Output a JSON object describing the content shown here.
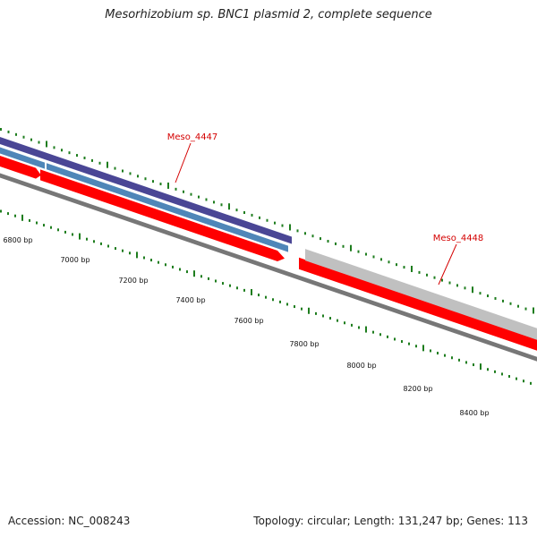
{
  "title": "Mesorhizobium sp. BNC1 plasmid 2, complete sequence",
  "footer": {
    "accession": "Accession: NC_008243",
    "summary": "Topology: circular; Length: 131,247 bp; Genes: 113"
  },
  "genes": [
    {
      "name": "Meso_4447"
    },
    {
      "name": "Meso_4448"
    }
  ],
  "bp_labels": [
    "6800 bp",
    "7000 bp",
    "7200 bp",
    "7400 bp",
    "7600 bp",
    "7800 bp",
    "8000 bp",
    "8200 bp",
    "8400 bp"
  ],
  "colors": {
    "cds": "#ff0000",
    "cds_dark": "#c80000",
    "protein_dark": "#4a4695",
    "protein_blue": "#4f86b8",
    "gray_feature": "#c0c0c0",
    "backbone": "#777777",
    "tick": "#1e7d1e",
    "label": "#d40000"
  }
}
